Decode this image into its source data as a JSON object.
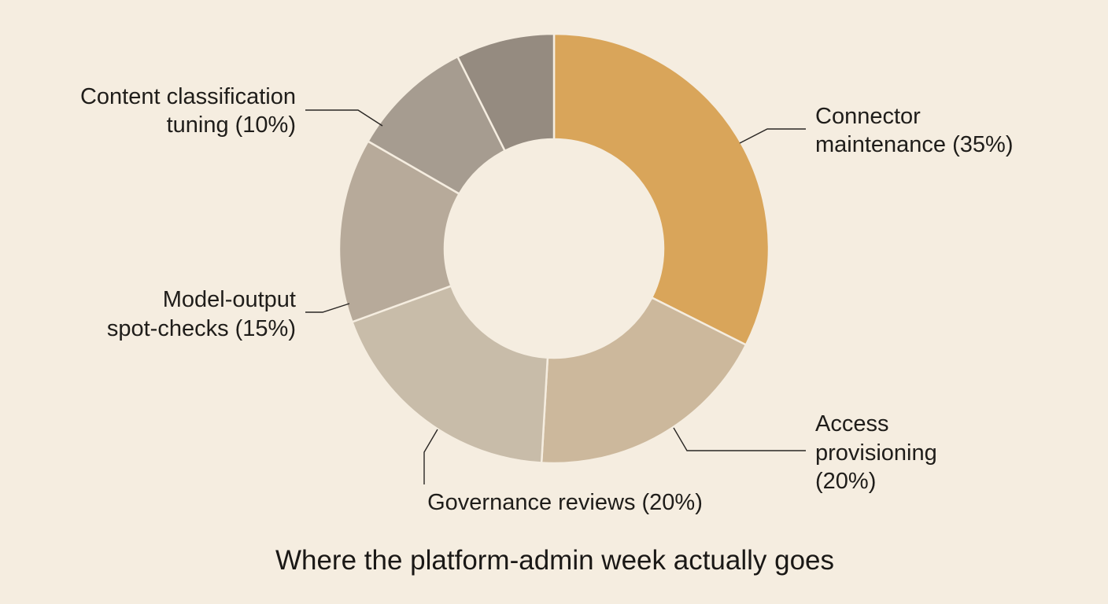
{
  "chart_data": {
    "type": "pie",
    "title": "Where the platform-admin week actually goes",
    "slices": [
      {
        "label": "Connector maintenance (35%)",
        "value": 35,
        "color": "#d9a55a"
      },
      {
        "label": "Access provisioning (20%)",
        "value": 20,
        "color": "#ccb89c"
      },
      {
        "label": "Governance reviews (20%)",
        "value": 20,
        "color": "#c8bca9"
      },
      {
        "label": "Model-output spot-checks (15%)",
        "value": 15,
        "color": "#b7aa9a"
      },
      {
        "label": "Content classification tuning (10%)",
        "value": 10,
        "color": "#a69c90"
      },
      {
        "label": "",
        "value": 8,
        "color": "#958b80"
      }
    ]
  }
}
